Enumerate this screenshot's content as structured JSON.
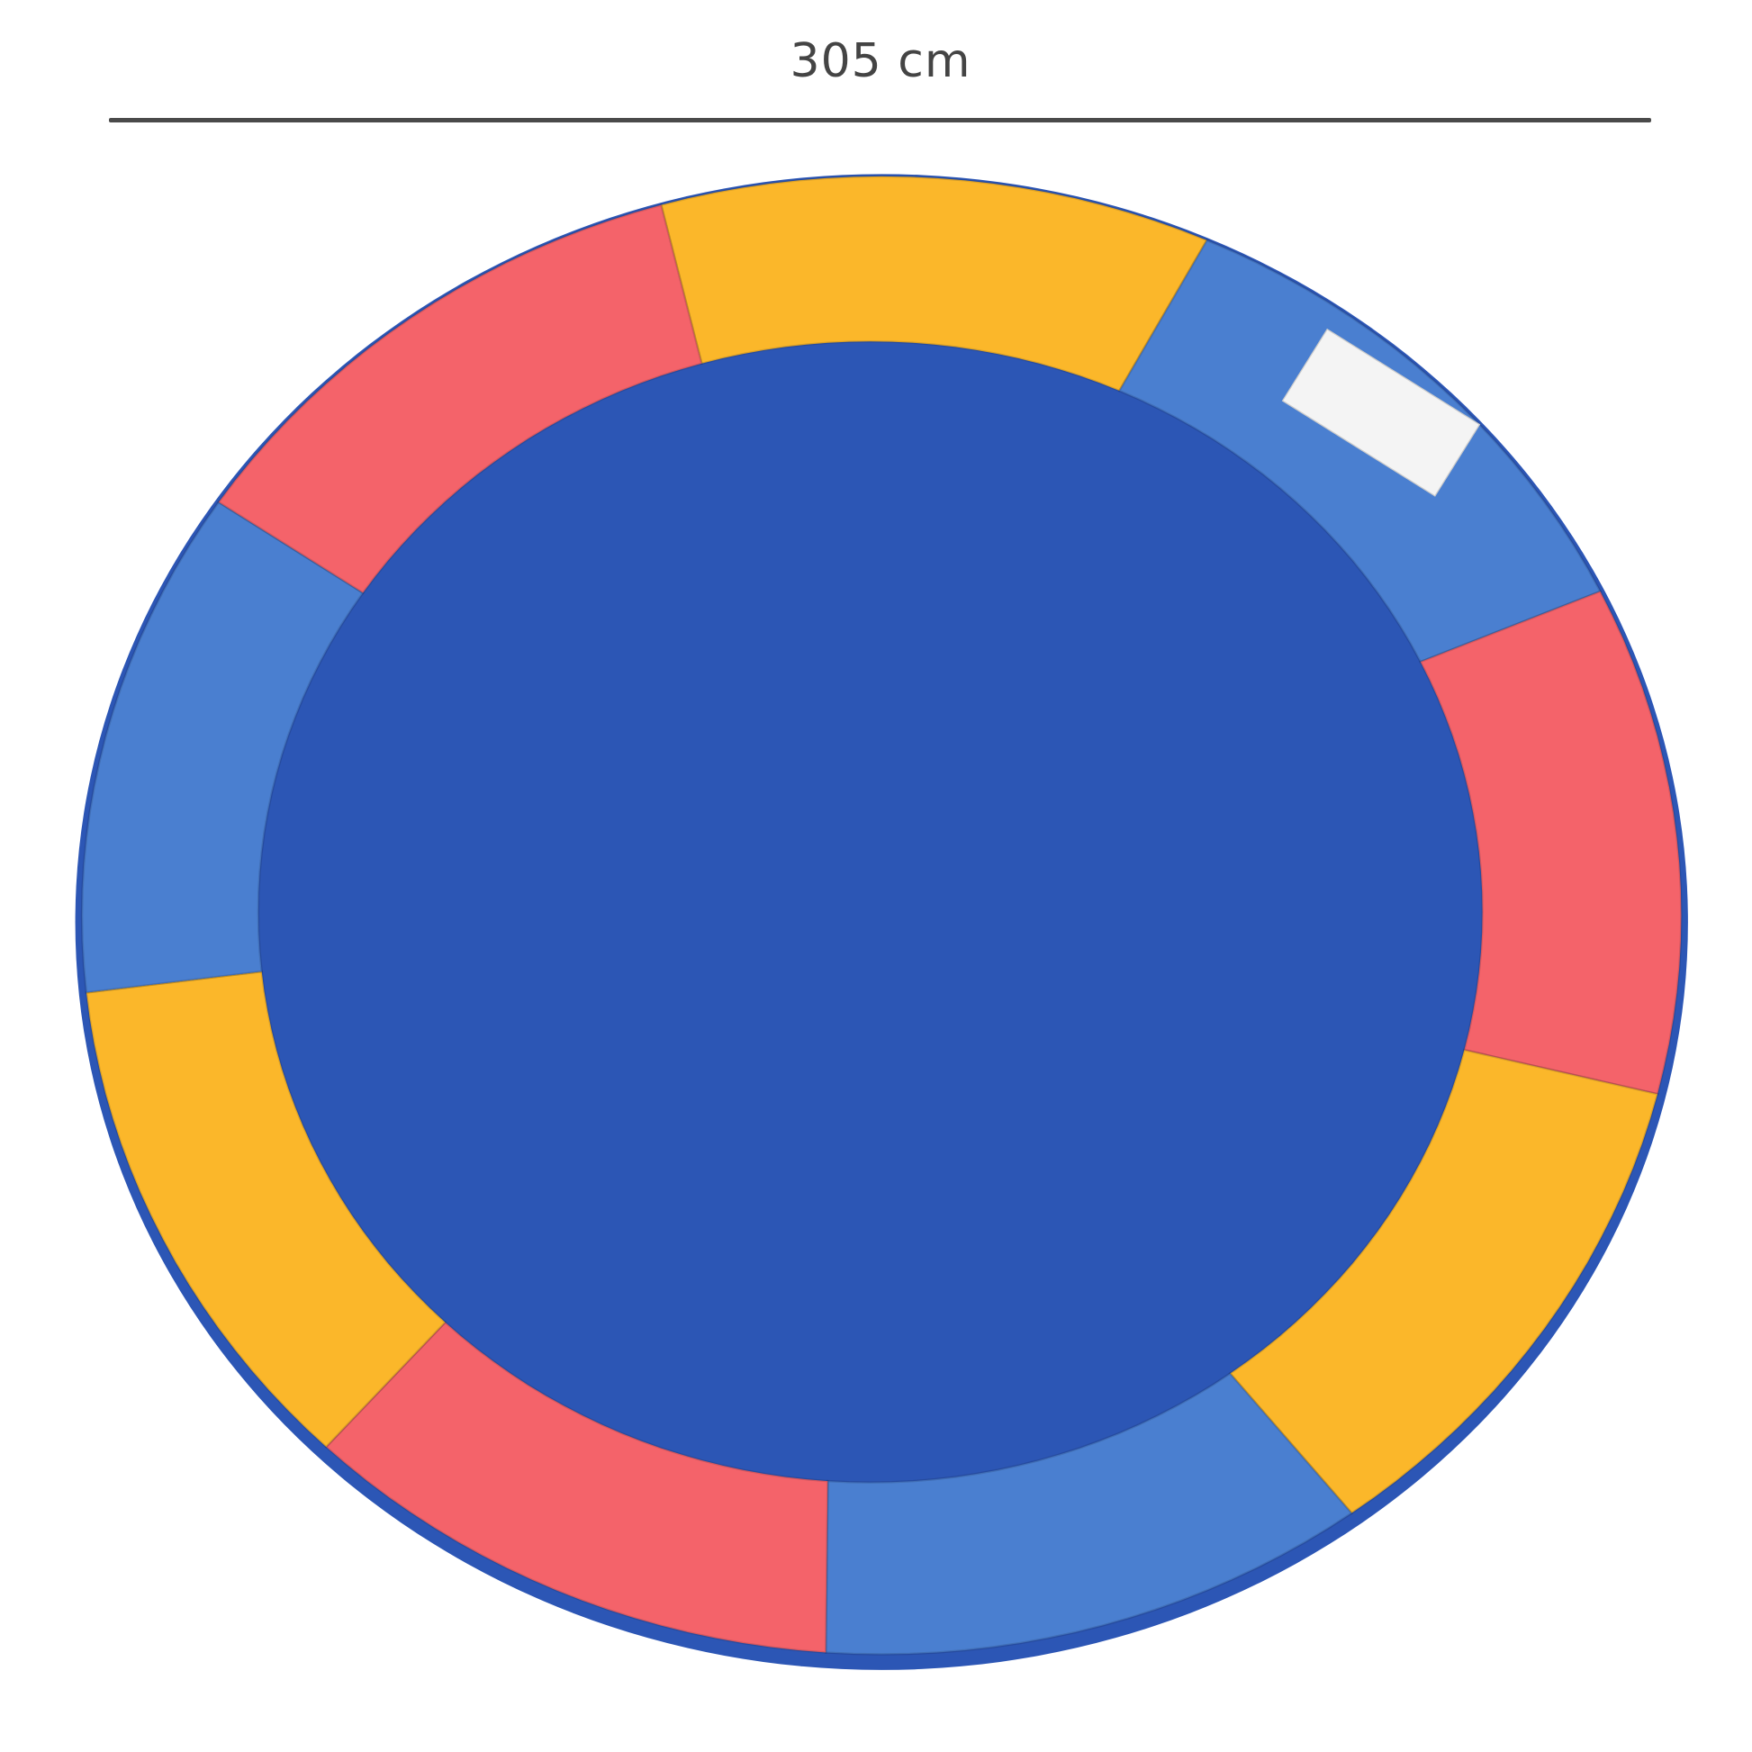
{
  "dimension": {
    "label": "305 cm"
  },
  "product": {
    "segment_colors": [
      "#fbb72a",
      "#4a7fd0",
      "#f4636a",
      "#fbb72a",
      "#4a7fd0",
      "#f4636a",
      "#fbb72a",
      "#4a7fd0",
      "#f4636a"
    ],
    "edge_color": "#2c56b5",
    "label_sticker_color": "#f4f4f4"
  }
}
